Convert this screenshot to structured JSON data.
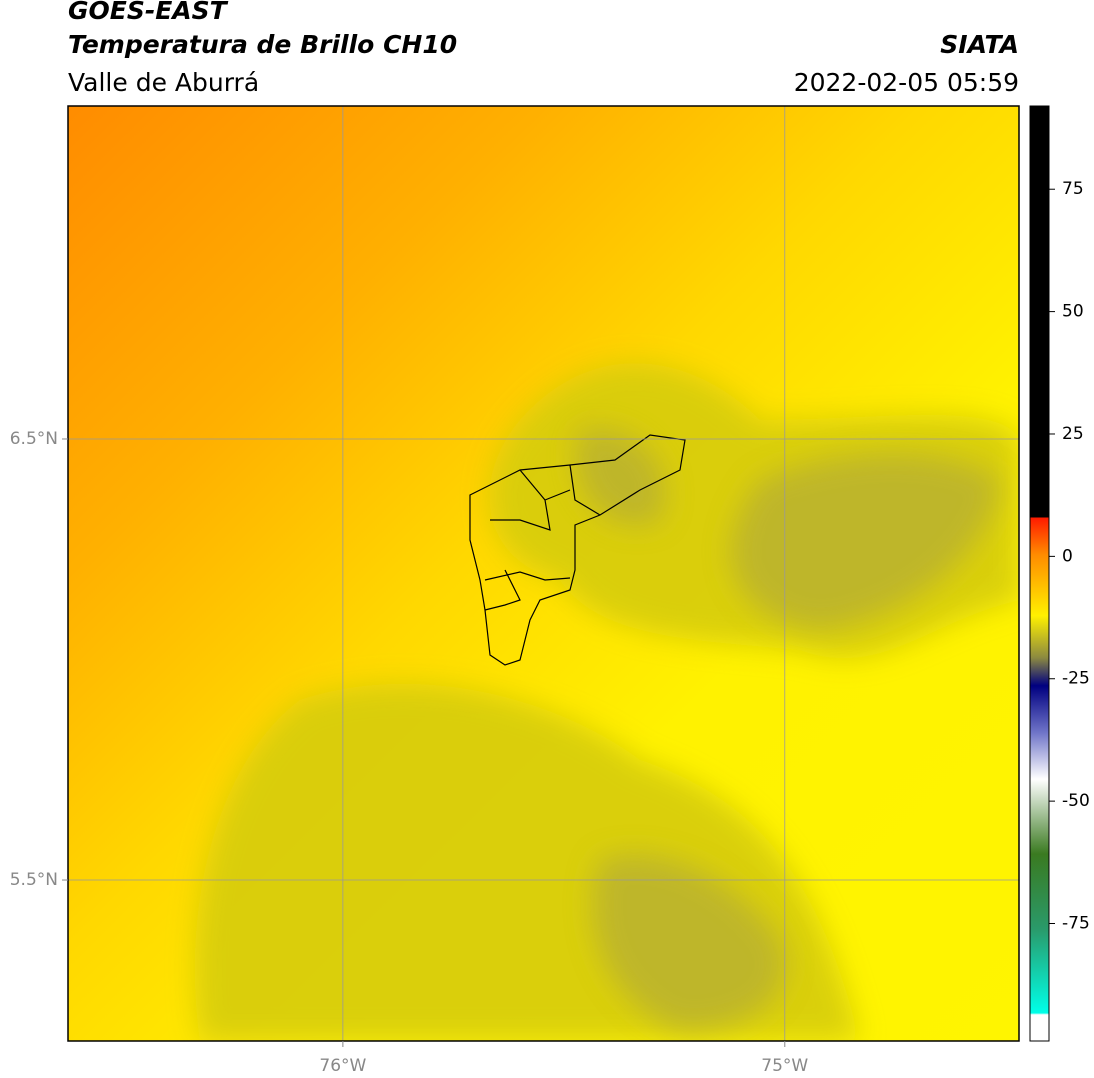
{
  "header": {
    "title": "GOES-EAST",
    "subtitle": "Temperatura de Brillo CH10",
    "region": "Valle de Aburrá",
    "source": "SIATA",
    "datetime": "2022-02-05 05:59"
  },
  "map": {
    "type": "map",
    "xlim": [
      -76.622,
      -74.47
    ],
    "ylim": [
      5.135,
      7.255
    ],
    "xticks": [
      {
        "value": -76,
        "label": "76°W"
      },
      {
        "value": -75,
        "label": "75°W"
      }
    ],
    "yticks": [
      {
        "value": 5.5,
        "label": "5.5°N"
      },
      {
        "value": 6.5,
        "label": "6.5°N"
      }
    ],
    "grid": true
  },
  "colorbar": {
    "lim": [
      -99,
      92
    ],
    "ticks": [
      75,
      50,
      25,
      0,
      -25,
      -50,
      -75
    ]
  }
}
